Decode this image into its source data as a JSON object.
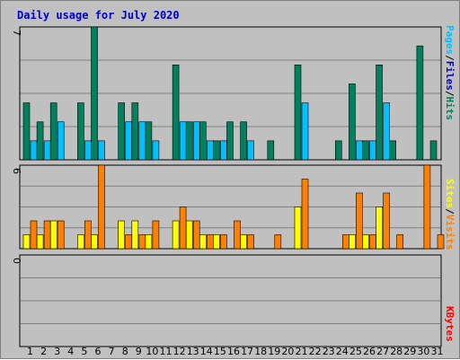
{
  "chart_data": [
    {
      "type": "bar",
      "title": "Daily usage for July 2020",
      "categories": [
        "1",
        "2",
        "3",
        "4",
        "5",
        "6",
        "7",
        "8",
        "9",
        "10",
        "11",
        "12",
        "13",
        "14",
        "15",
        "16",
        "17",
        "18",
        "19",
        "20",
        "21",
        "22",
        "23",
        "24",
        "25",
        "26",
        "27",
        "28",
        "29",
        "30",
        "31"
      ],
      "weekend_days": [
        "4",
        "5",
        "11",
        "12",
        "18",
        "19",
        "25",
        "26"
      ],
      "ylim": [
        0,
        7
      ],
      "ymax_label": "7",
      "series": [
        {
          "name": "Hits",
          "color": "#00805c",
          "values": [
            3,
            2,
            3,
            0,
            3,
            7,
            0,
            3,
            3,
            2,
            0,
            5,
            2,
            2,
            1,
            2,
            2,
            0,
            1,
            0,
            5,
            0,
            0,
            1,
            4,
            1,
            5,
            1,
            0,
            6,
            1
          ]
        },
        {
          "name": "Files",
          "color": "#0000cc",
          "values": [
            null,
            null,
            null,
            null,
            null,
            null,
            null,
            null,
            null,
            null,
            null,
            null,
            null,
            null,
            null,
            null,
            null,
            null,
            null,
            null,
            null,
            null,
            null,
            null,
            null,
            null,
            null,
            null,
            null,
            null,
            null
          ]
        },
        {
          "name": "Pages",
          "color": "#00c0ff",
          "values": [
            1,
            1,
            2,
            0,
            1,
            1,
            0,
            2,
            2,
            1,
            0,
            2,
            2,
            1,
            1,
            0,
            1,
            0,
            0,
            0,
            3,
            0,
            0,
            0,
            1,
            1,
            3,
            0,
            0,
            0,
            0
          ]
        }
      ],
      "legend_placement": "right-vertical"
    },
    {
      "type": "bar",
      "categories": [
        "1",
        "2",
        "3",
        "4",
        "5",
        "6",
        "7",
        "8",
        "9",
        "10",
        "11",
        "12",
        "13",
        "14",
        "15",
        "16",
        "17",
        "18",
        "19",
        "20",
        "21",
        "22",
        "23",
        "24",
        "25",
        "26",
        "27",
        "28",
        "29",
        "30",
        "31"
      ],
      "ylim": [
        0,
        6
      ],
      "ymax_label": "6",
      "series": [
        {
          "name": "Visits",
          "color": "#ff8000",
          "values": [
            2,
            2,
            2,
            0,
            2,
            6,
            0,
            1,
            1,
            2,
            0,
            3,
            2,
            1,
            1,
            2,
            1,
            0,
            1,
            0,
            5,
            0,
            0,
            1,
            4,
            1,
            4,
            1,
            0,
            6,
            1
          ]
        },
        {
          "name": "Sites",
          "color": "#ffff00",
          "values": [
            1,
            1,
            2,
            0,
            1,
            1,
            0,
            2,
            2,
            1,
            0,
            2,
            2,
            1,
            1,
            0,
            1,
            0,
            0,
            0,
            3,
            0,
            0,
            0,
            1,
            1,
            3,
            0,
            0,
            0,
            0
          ]
        }
      ],
      "legend_placement": "right-vertical"
    },
    {
      "type": "bar",
      "categories": [
        "1",
        "2",
        "3",
        "4",
        "5",
        "6",
        "7",
        "8",
        "9",
        "10",
        "11",
        "12",
        "13",
        "14",
        "15",
        "16",
        "17",
        "18",
        "19",
        "20",
        "21",
        "22",
        "23",
        "24",
        "25",
        "26",
        "27",
        "28",
        "29",
        "30",
        "31"
      ],
      "ylim": [
        0,
        1
      ],
      "ymax_label": "0",
      "series": [
        {
          "name": "KBytes",
          "color": "#ff0000",
          "values": [
            0,
            0,
            0,
            0,
            0,
            0,
            0,
            0,
            0,
            0,
            0,
            0,
            0,
            0,
            0,
            0,
            0,
            0,
            0,
            0,
            0,
            0,
            0,
            0,
            0,
            0,
            0,
            0,
            0,
            0,
            0
          ]
        }
      ],
      "legend_placement": "right-vertical"
    }
  ],
  "legend_rows": [
    [
      {
        "text": "Hits",
        "color": "#00805c"
      },
      {
        "text": "/",
        "color": "#000000"
      },
      {
        "text": "Files",
        "color": "#0000cc"
      },
      {
        "text": "/",
        "color": "#000000"
      },
      {
        "text": "Pages",
        "color": "#00c0ff"
      }
    ],
    [
      {
        "text": "Visits",
        "color": "#ff8000"
      },
      {
        "text": "/",
        "color": "#000000"
      },
      {
        "text": "Sites",
        "color": "#ffff00"
      }
    ],
    [
      {
        "text": "KBytes",
        "color": "#ff0000"
      }
    ]
  ],
  "colors": {
    "background": "#c0c0c0",
    "gridline": "#808080",
    "title": "#0000cc",
    "weekend_label": "#00805c",
    "weekday_label": "#000000"
  }
}
